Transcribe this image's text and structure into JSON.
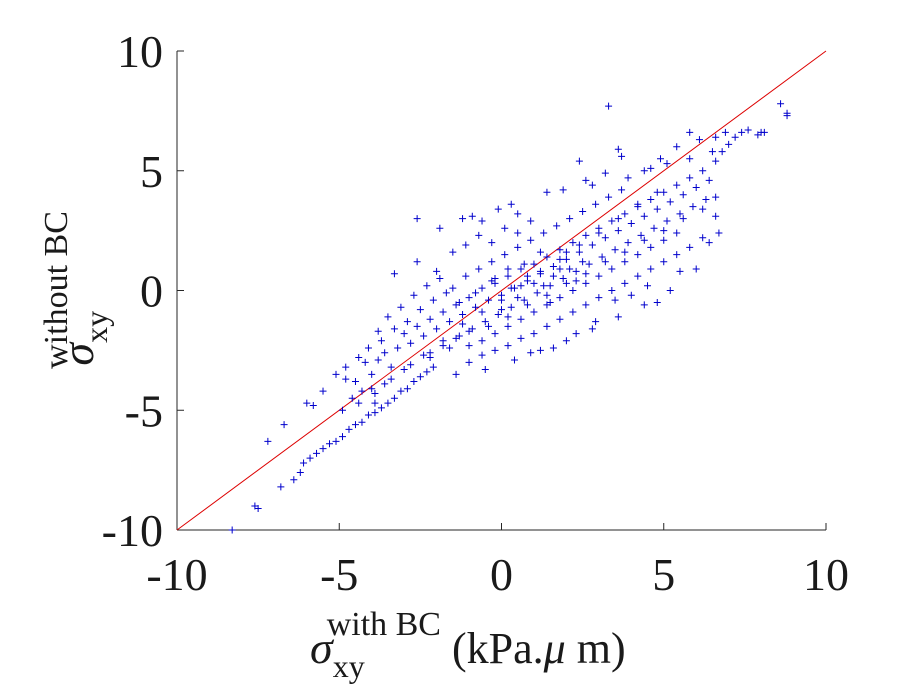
{
  "chart_data": {
    "type": "scatter",
    "title": "",
    "xlabel": {
      "symbol": "σ",
      "subscript": "xy",
      "superscript": "with BC",
      "unit_prefix": " (kPa.",
      "unit_mu": "μ",
      "unit_suffix": " m)"
    },
    "ylabel": {
      "symbol": "σ",
      "subscript": "xy",
      "superscript": "without BC"
    },
    "xlim": [
      -10,
      10
    ],
    "ylim": [
      -10,
      10
    ],
    "x_ticks": [
      -10,
      -5,
      0,
      5,
      10
    ],
    "y_ticks": [
      -10,
      -5,
      0,
      5,
      10
    ],
    "x_tick_labels": [
      "-10",
      "-5",
      "0",
      "5",
      "10"
    ],
    "y_tick_labels": [
      "-10",
      "-5",
      "0",
      "5",
      "10"
    ],
    "grid": false,
    "marker": "+",
    "marker_color": "#0000cc",
    "reference_line": {
      "x": [
        -10,
        10
      ],
      "y": [
        -10,
        10
      ],
      "color": "#dd0000"
    },
    "series": [
      {
        "points": [
          [
            -8.3,
            -10.0
          ],
          [
            -7.6,
            -9.0
          ],
          [
            -7.5,
            -9.1
          ],
          [
            -7.2,
            -6.3
          ],
          [
            -6.8,
            -8.2
          ],
          [
            -6.7,
            -5.6
          ],
          [
            -6.4,
            -7.9
          ],
          [
            -6.2,
            -7.6
          ],
          [
            -6.1,
            -7.2
          ],
          [
            -5.9,
            -7.0
          ],
          [
            -5.7,
            -6.8
          ],
          [
            -5.8,
            -4.8
          ],
          [
            -5.5,
            -6.6
          ],
          [
            -5.3,
            -6.4
          ],
          [
            -5.1,
            -6.3
          ],
          [
            -4.9,
            -6.1
          ],
          [
            -4.7,
            -5.8
          ],
          [
            -4.5,
            -5.6
          ],
          [
            -4.3,
            -5.5
          ],
          [
            -4.1,
            -5.2
          ],
          [
            -3.9,
            -5.1
          ],
          [
            -3.7,
            -4.9
          ],
          [
            -3.5,
            -4.7
          ],
          [
            -3.3,
            -4.5
          ],
          [
            -3.1,
            -4.2
          ],
          [
            -2.9,
            -4.1
          ],
          [
            -2.7,
            -3.8
          ],
          [
            -2.5,
            -3.6
          ],
          [
            -2.3,
            -3.4
          ],
          [
            -2.1,
            -3.2
          ],
          [
            -4.5,
            -3.8
          ],
          [
            -4.2,
            -3.0
          ],
          [
            -4.0,
            -3.5
          ],
          [
            -3.8,
            -2.9
          ],
          [
            -3.6,
            -2.6
          ],
          [
            -3.4,
            -3.2
          ],
          [
            -3.2,
            -2.4
          ],
          [
            -3.0,
            -1.8
          ],
          [
            -2.8,
            -2.2
          ],
          [
            -2.6,
            -1.5
          ],
          [
            -2.4,
            -1.9
          ],
          [
            -2.2,
            -1.2
          ],
          [
            -2.0,
            -1.6
          ],
          [
            -1.8,
            -0.9
          ],
          [
            -1.6,
            -1.3
          ],
          [
            -1.4,
            -0.6
          ],
          [
            -1.2,
            -1.0
          ],
          [
            -1.0,
            -0.3
          ],
          [
            -0.8,
            -0.7
          ],
          [
            -0.6,
            0.1
          ],
          [
            -0.4,
            -0.4
          ],
          [
            -0.2,
            0.3
          ],
          [
            0.0,
            -0.2
          ],
          [
            0.2,
            0.6
          ],
          [
            0.4,
            0.1
          ],
          [
            0.6,
            0.9
          ],
          [
            0.8,
            0.4
          ],
          [
            1.0,
            1.1
          ],
          [
            1.2,
            0.7
          ],
          [
            1.4,
            1.4
          ],
          [
            1.6,
            1.0
          ],
          [
            1.8,
            1.7
          ],
          [
            2.0,
            1.3
          ],
          [
            2.2,
            2.0
          ],
          [
            2.4,
            1.6
          ],
          [
            2.6,
            2.3
          ],
          [
            2.8,
            1.9
          ],
          [
            3.0,
            2.6
          ],
          [
            3.2,
            2.2
          ],
          [
            3.4,
            2.9
          ],
          [
            3.6,
            2.5
          ],
          [
            3.8,
            3.2
          ],
          [
            4.0,
            2.8
          ],
          [
            4.2,
            3.5
          ],
          [
            4.4,
            3.1
          ],
          [
            4.6,
            3.8
          ],
          [
            4.8,
            3.4
          ],
          [
            5.0,
            4.1
          ],
          [
            5.2,
            3.7
          ],
          [
            5.4,
            4.4
          ],
          [
            5.6,
            4.0
          ],
          [
            5.8,
            4.7
          ],
          [
            6.0,
            4.3
          ],
          [
            6.2,
            5.0
          ],
          [
            6.4,
            4.6
          ],
          [
            6.6,
            5.4
          ],
          [
            6.8,
            5.8
          ],
          [
            7.0,
            6.1
          ],
          [
            7.2,
            6.4
          ],
          [
            7.4,
            6.6
          ],
          [
            7.9,
            6.5
          ],
          [
            8.0,
            6.6
          ],
          [
            8.6,
            7.8
          ],
          [
            8.8,
            7.3
          ],
          [
            8.8,
            7.4
          ],
          [
            3.3,
            7.7
          ],
          [
            3.6,
            5.9
          ],
          [
            2.4,
            5.4
          ],
          [
            3.7,
            5.6
          ],
          [
            1.4,
            4.1
          ],
          [
            -0.1,
            3.4
          ],
          [
            0.5,
            3.2
          ],
          [
            -0.9,
            3.1
          ],
          [
            2.8,
            4.4
          ],
          [
            4.9,
            5.5
          ],
          [
            5.8,
            6.6
          ],
          [
            6.1,
            6.3
          ],
          [
            6.6,
            6.4
          ],
          [
            5.4,
            6.0
          ],
          [
            4.6,
            5.1
          ],
          [
            -3.3,
            0.7
          ],
          [
            -2.6,
            1.2
          ],
          [
            -2.0,
            0.8
          ],
          [
            -1.5,
            1.6
          ],
          [
            -1.1,
            1.9
          ],
          [
            -0.7,
            2.3
          ],
          [
            -0.3,
            2.0
          ],
          [
            0.1,
            2.6
          ],
          [
            0.5,
            2.4
          ],
          [
            0.9,
            2.9
          ],
          [
            -3.8,
            -1.7
          ],
          [
            -3.5,
            -1.1
          ],
          [
            -3.1,
            -0.7
          ],
          [
            -2.7,
            -0.2
          ],
          [
            -2.3,
            0.2
          ],
          [
            -1.9,
            0.5
          ],
          [
            -1.5,
            0.1
          ],
          [
            -1.1,
            0.6
          ],
          [
            -0.7,
            0.9
          ],
          [
            -0.3,
            1.2
          ],
          [
            0.1,
            1.5
          ],
          [
            0.5,
            1.8
          ],
          [
            0.9,
            2.1
          ],
          [
            1.3,
            2.4
          ],
          [
            1.7,
            2.7
          ],
          [
            2.1,
            3.0
          ],
          [
            2.5,
            3.3
          ],
          [
            2.9,
            3.6
          ],
          [
            3.3,
            3.9
          ],
          [
            3.7,
            4.2
          ],
          [
            -5.1,
            -3.5
          ],
          [
            -4.8,
            -3.2
          ],
          [
            -4.4,
            -2.8
          ],
          [
            -4.1,
            -2.4
          ],
          [
            -3.7,
            -2.1
          ],
          [
            -3.3,
            -1.6
          ],
          [
            -2.9,
            -1.3
          ],
          [
            -2.5,
            -0.8
          ],
          [
            -2.1,
            -0.4
          ],
          [
            -1.7,
            -0.1
          ],
          [
            -1.3,
            -1.9
          ],
          [
            -0.9,
            -1.6
          ],
          [
            -0.5,
            -1.3
          ],
          [
            -0.1,
            -1.0
          ],
          [
            0.3,
            -0.7
          ],
          [
            0.7,
            -0.4
          ],
          [
            1.1,
            -0.1
          ],
          [
            1.5,
            0.2
          ],
          [
            1.9,
            0.5
          ],
          [
            2.3,
            0.8
          ],
          [
            2.7,
            1.1
          ],
          [
            3.1,
            1.4
          ],
          [
            3.5,
            1.7
          ],
          [
            3.9,
            2.0
          ],
          [
            4.3,
            2.3
          ],
          [
            4.7,
            2.6
          ],
          [
            5.1,
            2.9
          ],
          [
            5.5,
            3.2
          ],
          [
            5.9,
            3.5
          ],
          [
            6.3,
            3.8
          ],
          [
            -2.2,
            -2.6
          ],
          [
            -1.8,
            -2.3
          ],
          [
            -1.4,
            -2.0
          ],
          [
            -1.0,
            -1.7
          ],
          [
            -0.6,
            -2.1
          ],
          [
            -0.2,
            -1.8
          ],
          [
            0.2,
            -1.5
          ],
          [
            0.6,
            -1.2
          ],
          [
            1.0,
            -0.9
          ],
          [
            1.4,
            -0.6
          ],
          [
            1.8,
            -0.3
          ],
          [
            2.2,
            0.0
          ],
          [
            2.6,
            0.3
          ],
          [
            3.0,
            0.6
          ],
          [
            3.4,
            0.9
          ],
          [
            3.8,
            1.2
          ],
          [
            4.2,
            1.5
          ],
          [
            4.6,
            1.8
          ],
          [
            5.0,
            2.1
          ],
          [
            5.4,
            2.4
          ],
          [
            -1.0,
            -3.0
          ],
          [
            -0.6,
            -2.7
          ],
          [
            -0.2,
            -2.5
          ],
          [
            0.2,
            -2.3
          ],
          [
            0.6,
            -2.0
          ],
          [
            1.0,
            -1.8
          ],
          [
            1.4,
            -1.5
          ],
          [
            1.8,
            -1.2
          ],
          [
            2.2,
            -0.9
          ],
          [
            2.6,
            -0.6
          ],
          [
            3.0,
            -0.3
          ],
          [
            3.4,
            0.0
          ],
          [
            3.8,
            0.3
          ],
          [
            4.2,
            0.6
          ],
          [
            4.6,
            0.9
          ],
          [
            5.0,
            1.2
          ],
          [
            5.4,
            1.5
          ],
          [
            5.8,
            1.8
          ],
          [
            6.2,
            2.2
          ],
          [
            6.7,
            2.4
          ],
          [
            -1.4,
            -3.5
          ],
          [
            -0.5,
            -3.3
          ],
          [
            0.4,
            -2.9
          ],
          [
            1.2,
            -2.5
          ],
          [
            2.0,
            -2.1
          ],
          [
            2.8,
            -1.6
          ],
          [
            3.6,
            -1.1
          ],
          [
            4.4,
            -0.6
          ],
          [
            5.2,
            0.0
          ],
          [
            6.0,
            0.9
          ],
          [
            -4.6,
            -4.5
          ],
          [
            -4.0,
            -4.1
          ],
          [
            -3.4,
            -3.7
          ],
          [
            -2.8,
            -3.1
          ],
          [
            -2.2,
            -2.8
          ],
          [
            -1.6,
            -2.4
          ],
          [
            -1.0,
            -2.3
          ],
          [
            -0.4,
            -1.5
          ],
          [
            0.2,
            -1.1
          ],
          [
            0.8,
            -0.6
          ],
          [
            1.4,
            -0.2
          ],
          [
            2.0,
            0.3
          ],
          [
            2.6,
            0.7
          ],
          [
            3.2,
            1.2
          ],
          [
            3.8,
            1.6
          ],
          [
            4.4,
            2.1
          ],
          [
            5.0,
            2.5
          ],
          [
            5.6,
            3.0
          ],
          [
            6.2,
            3.4
          ],
          [
            6.6,
            3.9
          ],
          [
            -0.2,
            0.5
          ],
          [
            0.3,
            0.1
          ],
          [
            0.8,
            0.6
          ],
          [
            1.3,
            0.2
          ],
          [
            1.8,
            0.9
          ],
          [
            2.3,
            0.4
          ],
          [
            0.0,
            -0.8
          ],
          [
            0.5,
            -0.3
          ],
          [
            1.0,
            0.3
          ],
          [
            1.5,
            -0.5
          ],
          [
            2.0,
            1.6
          ],
          [
            2.5,
            1.2
          ],
          [
            1.2,
            1.6
          ],
          [
            0.7,
            1.1
          ],
          [
            0.2,
            0.9
          ],
          [
            -0.3,
            0.4
          ],
          [
            -0.8,
            -0.1
          ],
          [
            -1.3,
            -0.5
          ],
          [
            1.6,
            0.6
          ],
          [
            2.1,
            0.9
          ],
          [
            -3.6,
            -3.9
          ],
          [
            -3.0,
            -3.3
          ],
          [
            -2.4,
            -2.7
          ],
          [
            -1.8,
            -2.1
          ],
          [
            -1.2,
            -1.4
          ],
          [
            -0.6,
            -0.9
          ],
          [
            0.0,
            -0.4
          ],
          [
            0.6,
            0.2
          ],
          [
            1.2,
            0.8
          ],
          [
            1.8,
            1.3
          ],
          [
            2.4,
            1.9
          ],
          [
            3.0,
            2.4
          ],
          [
            3.6,
            3.0
          ],
          [
            4.2,
            3.6
          ],
          [
            4.8,
            4.1
          ],
          [
            -4.9,
            -5.0
          ],
          [
            -4.4,
            -4.7
          ],
          [
            -3.9,
            -4.3
          ],
          [
            -4.3,
            -4.2
          ],
          [
            3.5,
            -0.4
          ],
          [
            4.0,
            -0.2
          ],
          [
            4.5,
            0.2
          ],
          [
            5.5,
            0.8
          ],
          [
            4.8,
            -0.5
          ],
          [
            6.4,
            2.0
          ],
          [
            6.6,
            3.1
          ],
          [
            2.9,
            -1.3
          ],
          [
            2.3,
            -1.8
          ],
          [
            1.6,
            -2.4
          ],
          [
            0.9,
            -2.6
          ],
          [
            -5.5,
            -4.2
          ],
          [
            -6.0,
            -4.7
          ],
          [
            -3.9,
            -4.7
          ],
          [
            -4.8,
            -3.7
          ],
          [
            -2.6,
            3.0
          ],
          [
            -1.9,
            2.6
          ],
          [
            -1.2,
            3.0
          ],
          [
            -0.6,
            2.9
          ],
          [
            0.3,
            3.6
          ],
          [
            1.9,
            4.2
          ],
          [
            2.6,
            4.6
          ],
          [
            3.2,
            4.9
          ],
          [
            3.9,
            4.7
          ],
          [
            4.4,
            5.0
          ],
          [
            5.1,
            5.3
          ],
          [
            5.8,
            5.5
          ],
          [
            6.5,
            5.8
          ],
          [
            6.9,
            6.6
          ],
          [
            7.6,
            6.7
          ],
          [
            8.1,
            6.6
          ]
        ]
      }
    ]
  }
}
